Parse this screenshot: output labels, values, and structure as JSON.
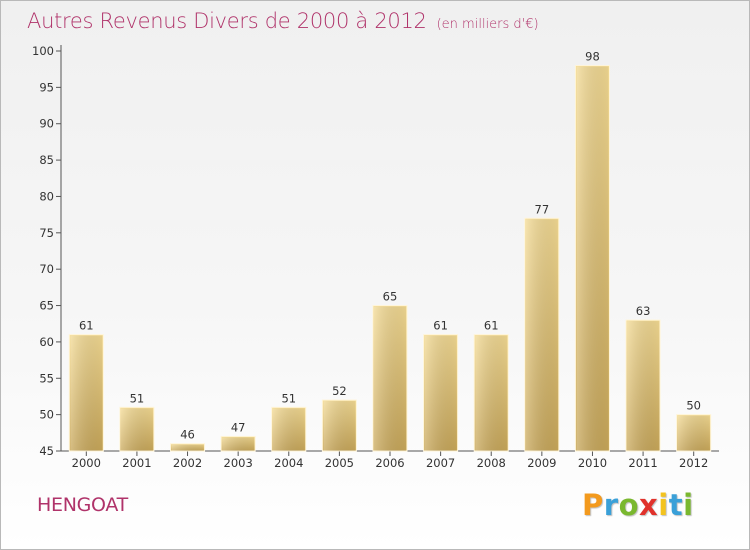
{
  "header": {
    "title": "Autres Revenus Divers de 2000 à 2012",
    "unit": "(en milliers d'€)"
  },
  "footer": {
    "place": "HENGOAT",
    "logo_letters": [
      "P",
      "r",
      "o",
      "x",
      "i",
      "t",
      "i"
    ],
    "logo_colors": [
      "#f39a1e",
      "#3aa0d8",
      "#7ab82f",
      "#e0312b",
      "#f3c31e",
      "#3aa0d8",
      "#7ab82f"
    ]
  },
  "chart_data": {
    "type": "bar",
    "categories": [
      "2000",
      "2001",
      "2002",
      "2003",
      "2004",
      "2005",
      "2006",
      "2007",
      "2008",
      "2009",
      "2010",
      "2011",
      "2012"
    ],
    "values": [
      61,
      51,
      46,
      47,
      51,
      52,
      65,
      61,
      61,
      77,
      98,
      63,
      50
    ],
    "title": "Autres Revenus Divers de 2000 à 2012",
    "xlabel": "",
    "ylabel": "",
    "ylim": [
      45,
      100
    ],
    "yticks": [
      45,
      50,
      55,
      60,
      65,
      70,
      75,
      80,
      85,
      90,
      95,
      100
    ],
    "grid": false,
    "bar_color": "#e3c67e"
  }
}
